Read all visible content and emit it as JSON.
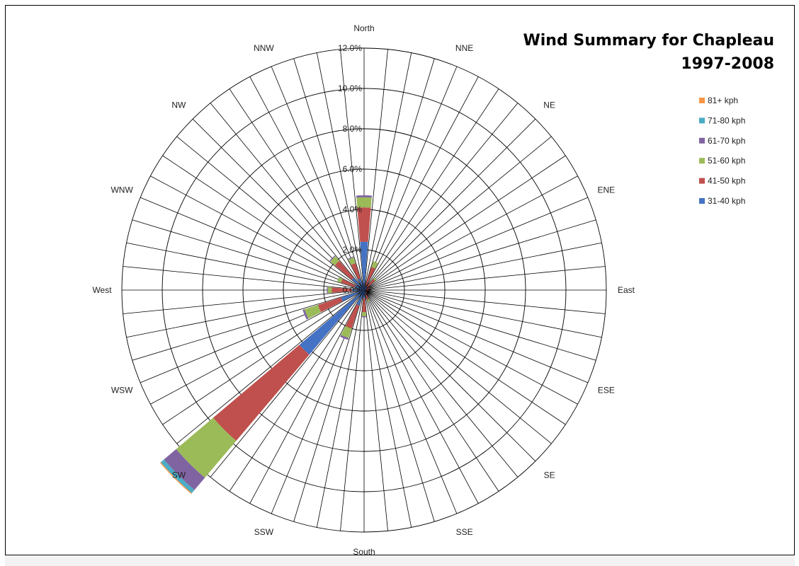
{
  "chart_data": {
    "type": "radar-stacked-bar",
    "title_lines": [
      "Wind Summary for Chapleau",
      "1997-2008"
    ],
    "directions": [
      "North",
      "NNE",
      "NE",
      "ENE",
      "East",
      "ESE",
      "SE",
      "SSE",
      "South",
      "SSW",
      "SW",
      "WSW",
      "West",
      "WNW",
      "NW",
      "NNW"
    ],
    "tick_labels": [
      "0.0%",
      "2.0%",
      "4.0%",
      "6.0%",
      "8.0%",
      "10.0%",
      "12.0%"
    ],
    "rmax": 12,
    "grid": true,
    "legend_placement": "right",
    "legend_order": [
      "81+ kph",
      "71-80 kph",
      "61-70 kph",
      "51-60 kph",
      "41-50 kph",
      "31-40 kph"
    ],
    "series": [
      {
        "name": "31-40 kph",
        "color": "#4472C4",
        "values": [
          2.4,
          0.2,
          0.2,
          0.1,
          0.1,
          0.0,
          0.1,
          0.2,
          0.4,
          0.8,
          4.2,
          1.2,
          0.6,
          0.5,
          0.8,
          0.6
        ]
      },
      {
        "name": "41-50 kph",
        "color": "#C0504D",
        "values": [
          1.7,
          1.0,
          0.5,
          0.2,
          0.1,
          0.0,
          0.1,
          0.3,
          0.7,
          1.2,
          5.6,
          1.2,
          1.0,
          0.7,
          1.1,
          0.8
        ]
      },
      {
        "name": "51-60 kph",
        "color": "#9BBB59",
        "values": [
          0.5,
          0.3,
          0.1,
          0.0,
          0.0,
          0.0,
          0.0,
          0.1,
          0.2,
          0.5,
          2.4,
          0.7,
          0.2,
          0.2,
          0.3,
          0.3
        ]
      },
      {
        "name": "61-70 kph",
        "color": "#8064A2",
        "values": [
          0.1,
          0.0,
          0.0,
          0.0,
          0.0,
          0.0,
          0.0,
          0.0,
          0.05,
          0.1,
          0.8,
          0.1,
          0.05,
          0.0,
          0.05,
          0.05
        ]
      },
      {
        "name": "71-80 kph",
        "color": "#4BACC6",
        "values": [
          0.0,
          0.0,
          0.0,
          0.0,
          0.0,
          0.0,
          0.0,
          0.0,
          0.0,
          0.0,
          0.2,
          0.0,
          0.0,
          0.0,
          0.0,
          0.0
        ]
      },
      {
        "name": "81+ kph",
        "color": "#F79646",
        "values": [
          0.0,
          0.0,
          0.0,
          0.0,
          0.0,
          0.0,
          0.0,
          0.0,
          0.0,
          0.0,
          0.05,
          0.0,
          0.0,
          0.0,
          0.0,
          0.0
        ]
      }
    ]
  }
}
